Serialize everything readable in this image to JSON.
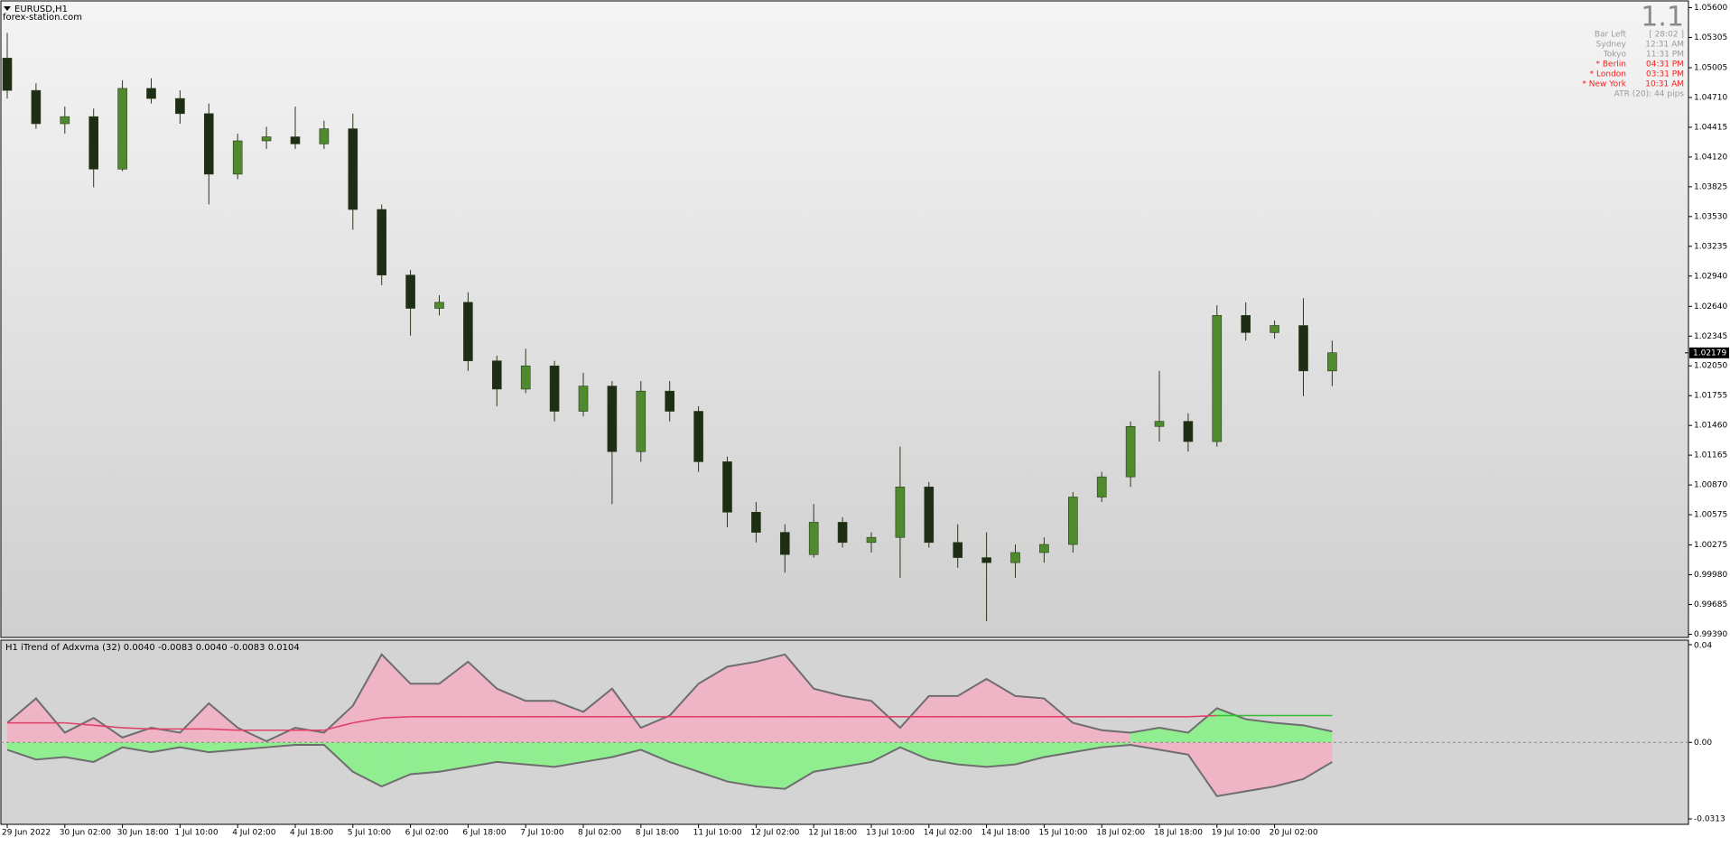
{
  "chart_data": [
    {
      "type": "candlestick",
      "title": "EURUSD,H1",
      "subtitle": "forex-station.com",
      "categories": [
        "29 Jun 2022",
        null,
        "30 Jun 02:00",
        null,
        "30 Jun 18:00",
        null,
        "1 Jul 10:00",
        null,
        "4 Jul 02:00",
        null,
        "4 Jul 18:00",
        null,
        "5 Jul 10:00",
        null,
        "6 Jul 02:00",
        null,
        "6 Jul 18:00",
        null,
        "7 Jul 10:00",
        null,
        "8 Jul 02:00",
        null,
        "8 Jul 18:00",
        null,
        "11 Jul 10:00",
        null,
        "12 Jul 02:00",
        null,
        "12 Jul 18:00",
        null,
        "13 Jul 10:00",
        null,
        "14 Jul 02:00",
        null,
        "14 Jul 18:00",
        null,
        "15 Jul 10:00",
        null,
        "18 Jul 02:00",
        null,
        "18 Jul 18:00",
        null,
        "19 Jul 10:00",
        null,
        "20 Jul 02:00",
        null,
        null
      ],
      "open": [
        1.051,
        1.0478,
        1.0445,
        1.0452,
        1.04,
        1.048,
        1.047,
        1.0455,
        1.0395,
        1.0428,
        1.0432,
        1.0425,
        1.044,
        1.036,
        1.0295,
        1.0262,
        1.0268,
        1.021,
        1.0182,
        1.0205,
        1.016,
        1.0185,
        1.012,
        1.018,
        1.016,
        1.011,
        1.006,
        1.004,
        1.0018,
        1.005,
        1.003,
        1.0035,
        1.0085,
        1.003,
        1.0015,
        1.001,
        1.002,
        1.0028,
        1.0075,
        1.0095,
        1.0145,
        1.015,
        1.013,
        1.0255,
        1.0238,
        1.0245,
        1.02
      ],
      "high": [
        1.0535,
        1.0485,
        1.0462,
        1.046,
        1.0488,
        1.049,
        1.0478,
        1.0465,
        1.0435,
        1.0442,
        1.0462,
        1.0448,
        1.0455,
        1.0365,
        1.03,
        1.0275,
        1.0278,
        1.0215,
        1.0222,
        1.021,
        1.0198,
        1.019,
        1.019,
        1.019,
        1.0165,
        1.0115,
        1.007,
        1.0048,
        1.0068,
        1.0055,
        1.004,
        1.0125,
        1.009,
        1.0048,
        1.004,
        1.0028,
        1.0035,
        1.008,
        1.01,
        1.015,
        1.02,
        1.0158,
        1.0265,
        1.0268,
        1.025,
        1.0272,
        1.023
      ],
      "low": [
        1.047,
        1.044,
        1.0435,
        1.0382,
        1.0398,
        1.0465,
        1.0445,
        1.0365,
        1.039,
        1.042,
        1.042,
        1.042,
        1.034,
        1.0285,
        1.0235,
        1.0255,
        1.02,
        1.0165,
        1.0178,
        1.015,
        1.0155,
        1.0068,
        1.011,
        1.015,
        1.01,
        1.0045,
        1.003,
        1.0,
        1.0015,
        1.0025,
        1.002,
        0.9995,
        1.0025,
        1.0005,
        0.9952,
        0.9995,
        1.001,
        1.002,
        1.007,
        1.0085,
        1.013,
        1.012,
        1.0125,
        1.023,
        1.0232,
        1.0175,
        1.0185
      ],
      "close": [
        1.0478,
        1.0445,
        1.0452,
        1.04,
        1.048,
        1.047,
        1.0455,
        1.0395,
        1.0428,
        1.0432,
        1.0425,
        1.044,
        1.036,
        1.0295,
        1.0262,
        1.0268,
        1.021,
        1.0182,
        1.0205,
        1.016,
        1.0185,
        1.012,
        1.018,
        1.016,
        1.011,
        1.006,
        1.004,
        1.0018,
        1.005,
        1.003,
        1.0035,
        1.0085,
        1.003,
        1.0015,
        1.001,
        1.002,
        1.0028,
        1.0075,
        1.0095,
        1.0145,
        1.015,
        1.013,
        1.0255,
        1.0238,
        1.0245,
        1.02,
        1.0218
      ],
      "up_color": "#4f8a2e",
      "down_color": "#1e2e14",
      "ylim": [
        0.9939,
        1.056
      ],
      "yticks": [
        {
          "value": 1.056,
          "label": "1.05600"
        },
        {
          "value": 1.05305,
          "label": "1.05305"
        },
        {
          "value": 1.05005,
          "label": "1.05005"
        },
        {
          "value": 1.0471,
          "label": "1.04710"
        },
        {
          "value": 1.04415,
          "label": "1.04415"
        },
        {
          "value": 1.0412,
          "label": "1.04120"
        },
        {
          "value": 1.03825,
          "label": "1.03825"
        },
        {
          "value": 1.0353,
          "label": "1.03530"
        },
        {
          "value": 1.03235,
          "label": "1.03235"
        },
        {
          "value": 1.0294,
          "label": "1.02940"
        },
        {
          "value": 1.0264,
          "label": "1.02640"
        },
        {
          "value": 1.02345,
          "label": "1.02345"
        },
        {
          "value": 1.0205,
          "label": "1.02050"
        },
        {
          "value": 1.01755,
          "label": "1.01755"
        },
        {
          "value": 1.0146,
          "label": "1.01460"
        },
        {
          "value": 1.01165,
          "label": "1.01165"
        },
        {
          "value": 1.0087,
          "label": "1.00870"
        },
        {
          "value": 1.00575,
          "label": "1.00575"
        },
        {
          "value": 1.00275,
          "label": "1.00275"
        },
        {
          "value": 0.9998,
          "label": "0.99980"
        },
        {
          "value": 0.99685,
          "label": "0.99685"
        },
        {
          "value": 0.9939,
          "label": "0.99390"
        }
      ],
      "last_price": 1.02179
    },
    {
      "type": "area",
      "title": "H1 iTrend of Adxvma (32) 0.0040 -0.0083 0.0040 -0.0083 0.0104",
      "line_color": "#6e6e6e",
      "series": [
        {
          "values": [
            0.008,
            0.018,
            0.004,
            0.01,
            0.002,
            0.006,
            0.004,
            0.016,
            0.006,
            0.0005,
            0.006,
            0.004,
            0.015,
            0.036,
            0.024,
            0.024,
            0.033,
            0.022,
            0.017,
            0.017,
            0.0125,
            0.022,
            0.006,
            0.011,
            0.024,
            0.031,
            0.033,
            0.036,
            0.022,
            0.019,
            0.017,
            0.006,
            0.019,
            0.019,
            0.026,
            0.019,
            0.018,
            0.008,
            0.005,
            0.004,
            0.006,
            0.004,
            0.014,
            0.0095,
            0.008,
            0.007,
            0.0045
          ],
          "colors": [
            "#efb4c6",
            "#efb4c6",
            "#efb4c6",
            "#efb4c6",
            "#efb4c6",
            "#efb4c6",
            "#efb4c6",
            "#efb4c6",
            "#efb4c6",
            "#efb4c6",
            "#efb4c6",
            "#efb4c6",
            "#efb4c6",
            "#efb4c6",
            "#efb4c6",
            "#efb4c6",
            "#efb4c6",
            "#efb4c6",
            "#efb4c6",
            "#efb4c6",
            "#efb4c6",
            "#efb4c6",
            "#efb4c6",
            "#efb4c6",
            "#efb4c6",
            "#efb4c6",
            "#efb4c6",
            "#efb4c6",
            "#efb4c6",
            "#efb4c6",
            "#efb4c6",
            "#efb4c6",
            "#efb4c6",
            "#efb4c6",
            "#efb4c6",
            "#efb4c6",
            "#efb4c6",
            "#efb4c6",
            "#efb4c6",
            "#90ee90",
            "#90ee90",
            "#90ee90",
            "#90ee90",
            "#90ee90",
            "#90ee90",
            "#90ee90",
            "#90ee90"
          ]
        },
        {
          "values": [
            -0.003,
            -0.007,
            -0.006,
            -0.008,
            -0.002,
            -0.004,
            -0.002,
            -0.004,
            -0.003,
            -0.002,
            -0.001,
            -0.001,
            -0.012,
            -0.018,
            -0.013,
            -0.012,
            -0.01,
            -0.008,
            -0.009,
            -0.01,
            -0.008,
            -0.006,
            -0.003,
            -0.008,
            -0.012,
            -0.016,
            -0.018,
            -0.019,
            -0.012,
            -0.01,
            -0.008,
            -0.002,
            -0.007,
            -0.009,
            -0.01,
            -0.009,
            -0.006,
            -0.004,
            -0.002,
            -0.001,
            -0.003,
            -0.005,
            -0.022,
            -0.02,
            -0.018,
            -0.015,
            -0.008
          ],
          "colors": [
            "#90ee90",
            "#90ee90",
            "#90ee90",
            "#90ee90",
            "#90ee90",
            "#90ee90",
            "#90ee90",
            "#90ee90",
            "#90ee90",
            "#90ee90",
            "#90ee90",
            "#90ee90",
            "#90ee90",
            "#90ee90",
            "#90ee90",
            "#90ee90",
            "#90ee90",
            "#90ee90",
            "#90ee90",
            "#90ee90",
            "#90ee90",
            "#90ee90",
            "#90ee90",
            "#90ee90",
            "#90ee90",
            "#90ee90",
            "#90ee90",
            "#90ee90",
            "#90ee90",
            "#90ee90",
            "#90ee90",
            "#90ee90",
            "#90ee90",
            "#90ee90",
            "#90ee90",
            "#90ee90",
            "#90ee90",
            "#90ee90",
            "#90ee90",
            "#efb4c6",
            "#efb4c6",
            "#efb4c6",
            "#efb4c6",
            "#efb4c6",
            "#efb4c6",
            "#efb4c6",
            "#efb4c6"
          ]
        }
      ],
      "signal": {
        "values": [
          0.008,
          0.008,
          0.008,
          0.007,
          0.006,
          0.0055,
          0.0055,
          0.0055,
          0.005,
          0.005,
          0.005,
          0.005,
          0.008,
          0.01,
          0.0105,
          0.0105,
          0.0105,
          0.0105,
          0.0105,
          0.0105,
          0.0105,
          0.0105,
          0.0105,
          0.0105,
          0.0105,
          0.0105,
          0.0105,
          0.0105,
          0.0105,
          0.0105,
          0.0105,
          0.0105,
          0.0105,
          0.0105,
          0.0105,
          0.0105,
          0.0105,
          0.0105,
          0.0105,
          0.0105,
          0.0105,
          0.0105,
          0.011,
          0.011,
          0.011,
          0.011,
          0.011
        ],
        "colors": [
          "#e0406a",
          "#e0406a",
          "#e0406a",
          "#e0406a",
          "#e0406a",
          "#e0406a",
          "#e0406a",
          "#e0406a",
          "#e0406a",
          "#e0406a",
          "#e0406a",
          "#e0406a",
          "#e0406a",
          "#e0406a",
          "#e0406a",
          "#e0406a",
          "#e0406a",
          "#e0406a",
          "#e0406a",
          "#e0406a",
          "#e0406a",
          "#e0406a",
          "#e0406a",
          "#e0406a",
          "#e0406a",
          "#e0406a",
          "#e0406a",
          "#e0406a",
          "#e0406a",
          "#e0406a",
          "#e0406a",
          "#e0406a",
          "#e0406a",
          "#e0406a",
          "#e0406a",
          "#e0406a",
          "#e0406a",
          "#e0406a",
          "#e0406a",
          "#e0406a",
          "#e0406a",
          "#e0406a",
          "#2fbf2f",
          "#2fbf2f",
          "#2fbf2f",
          "#2fbf2f",
          "#2fbf2f"
        ]
      },
      "ylim": [
        -0.0313,
        0.04
      ],
      "yticks": [
        0.04,
        {
          "value": 0,
          "label": "0.00"
        },
        -0.0313
      ]
    }
  ],
  "panel": {
    "big_label": "1.1",
    "rows": [
      {
        "label": "Bar Left",
        "value": "[ 28:02 ]",
        "color": "#9a9a9a"
      },
      {
        "label": "Sydney",
        "value": "12:31 AM",
        "color": "#9a9a9a"
      },
      {
        "label": "Tokyo",
        "value": "11:31 PM",
        "color": "#9a9a9a"
      },
      {
        "label": "* Berlin",
        "value": "04:31 PM",
        "color": "#ff1a1a"
      },
      {
        "label": "* London",
        "value": "03:31 PM",
        "color": "#ff1a1a"
      },
      {
        "label": "* New York",
        "value": "10:31 AM",
        "color": "#ff1a1a"
      }
    ],
    "atr": "ATR (20): 44 pips"
  }
}
